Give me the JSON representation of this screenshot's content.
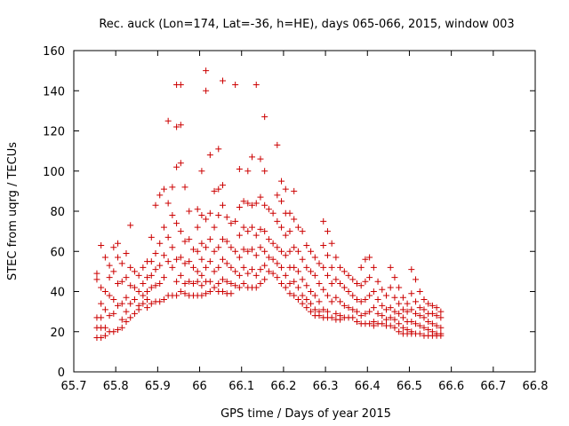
{
  "chart_data": {
    "type": "scatter",
    "title": "Rec. auck (Lon=174, Lat=-36, h=HE), days 065-066, 2015, window 003",
    "xlabel": "GPS time / Days of year 2015",
    "ylabel": "STEC from uqrg / TECUs",
    "xlim": [
      65.7,
      66.8
    ],
    "ylim": [
      0,
      160
    ],
    "xticks": [
      "65.7",
      "65.8",
      "65.9",
      "66",
      "66.1",
      "66.2",
      "66.3",
      "66.4",
      "66.5",
      "66.6",
      "66.7",
      "66.8"
    ],
    "yticks": [
      "0",
      "20",
      "40",
      "60",
      "80",
      "100",
      "120",
      "140",
      "160"
    ],
    "grid": false,
    "legend": "none",
    "marker": "plus",
    "color": "#cc0000",
    "points": [
      [
        65.755,
        49
      ],
      [
        65.755,
        46
      ],
      [
        65.755,
        27
      ],
      [
        65.755,
        22
      ],
      [
        65.755,
        17
      ],
      [
        65.765,
        63
      ],
      [
        65.765,
        42
      ],
      [
        65.765,
        34
      ],
      [
        65.765,
        27
      ],
      [
        65.765,
        22
      ],
      [
        65.765,
        17
      ],
      [
        65.775,
        57
      ],
      [
        65.775,
        40
      ],
      [
        65.775,
        31
      ],
      [
        65.775,
        22
      ],
      [
        65.775,
        18
      ],
      [
        65.785,
        53
      ],
      [
        65.785,
        47
      ],
      [
        65.785,
        38
      ],
      [
        65.785,
        28
      ],
      [
        65.785,
        20
      ],
      [
        65.795,
        62
      ],
      [
        65.795,
        50
      ],
      [
        65.795,
        36
      ],
      [
        65.795,
        29
      ],
      [
        65.795,
        20
      ],
      [
        65.805,
        64
      ],
      [
        65.805,
        57
      ],
      [
        65.805,
        44
      ],
      [
        65.805,
        33
      ],
      [
        65.805,
        21
      ],
      [
        65.815,
        54
      ],
      [
        65.815,
        45
      ],
      [
        65.815,
        34
      ],
      [
        65.815,
        26
      ],
      [
        65.815,
        22
      ],
      [
        65.825,
        59
      ],
      [
        65.825,
        47
      ],
      [
        65.825,
        37
      ],
      [
        65.825,
        30
      ],
      [
        65.825,
        25
      ],
      [
        65.835,
        73
      ],
      [
        65.835,
        52
      ],
      [
        65.835,
        43
      ],
      [
        65.835,
        34
      ],
      [
        65.835,
        27
      ],
      [
        65.845,
        50
      ],
      [
        65.845,
        42
      ],
      [
        65.845,
        36
      ],
      [
        65.845,
        29
      ],
      [
        65.855,
        48
      ],
      [
        65.855,
        40
      ],
      [
        65.855,
        33
      ],
      [
        65.855,
        31
      ],
      [
        65.865,
        52
      ],
      [
        65.865,
        44
      ],
      [
        65.865,
        38
      ],
      [
        65.865,
        34
      ],
      [
        65.875,
        55
      ],
      [
        65.875,
        47
      ],
      [
        65.875,
        40
      ],
      [
        65.875,
        36
      ],
      [
        65.875,
        32
      ],
      [
        65.885,
        67
      ],
      [
        65.885,
        55
      ],
      [
        65.885,
        48
      ],
      [
        65.885,
        42
      ],
      [
        65.885,
        34
      ],
      [
        65.895,
        83
      ],
      [
        65.895,
        59
      ],
      [
        65.895,
        51
      ],
      [
        65.895,
        43
      ],
      [
        65.895,
        35
      ],
      [
        65.905,
        88
      ],
      [
        65.905,
        64
      ],
      [
        65.905,
        53
      ],
      [
        65.905,
        44
      ],
      [
        65.905,
        35
      ],
      [
        65.915,
        91
      ],
      [
        65.915,
        72
      ],
      [
        65.915,
        58
      ],
      [
        65.915,
        47
      ],
      [
        65.915,
        36
      ],
      [
        65.925,
        125
      ],
      [
        65.925,
        84
      ],
      [
        65.925,
        67
      ],
      [
        65.925,
        55
      ],
      [
        65.925,
        38
      ],
      [
        65.935,
        92
      ],
      [
        65.935,
        78
      ],
      [
        65.935,
        62
      ],
      [
        65.935,
        52
      ],
      [
        65.935,
        38
      ],
      [
        65.945,
        143
      ],
      [
        65.945,
        122
      ],
      [
        65.945,
        102
      ],
      [
        65.945,
        74
      ],
      [
        65.945,
        56
      ],
      [
        65.945,
        45
      ],
      [
        65.945,
        38
      ],
      [
        65.955,
        143
      ],
      [
        65.955,
        123
      ],
      [
        65.955,
        104
      ],
      [
        65.955,
        70
      ],
      [
        65.955,
        57
      ],
      [
        65.955,
        48
      ],
      [
        65.955,
        40
      ],
      [
        65.965,
        92
      ],
      [
        65.965,
        65
      ],
      [
        65.965,
        54
      ],
      [
        65.965,
        44
      ],
      [
        65.965,
        39
      ],
      [
        65.975,
        80
      ],
      [
        65.975,
        66
      ],
      [
        65.975,
        55
      ],
      [
        65.975,
        45
      ],
      [
        65.975,
        38
      ],
      [
        65.985,
        61
      ],
      [
        65.985,
        52
      ],
      [
        65.985,
        44
      ],
      [
        65.985,
        38
      ],
      [
        65.995,
        81
      ],
      [
        65.995,
        72
      ],
      [
        65.995,
        60
      ],
      [
        65.995,
        50
      ],
      [
        65.995,
        45
      ],
      [
        65.995,
        38
      ],
      [
        66.005,
        100
      ],
      [
        66.005,
        78
      ],
      [
        66.005,
        64
      ],
      [
        66.005,
        56
      ],
      [
        66.005,
        48
      ],
      [
        66.005,
        43
      ],
      [
        66.005,
        38
      ],
      [
        66.015,
        150
      ],
      [
        66.015,
        140
      ],
      [
        66.015,
        76
      ],
      [
        66.015,
        62
      ],
      [
        66.015,
        52
      ],
      [
        66.015,
        45
      ],
      [
        66.015,
        39
      ],
      [
        66.025,
        108
      ],
      [
        66.025,
        79
      ],
      [
        66.025,
        66
      ],
      [
        66.025,
        55
      ],
      [
        66.025,
        45
      ],
      [
        66.025,
        40
      ],
      [
        66.035,
        90
      ],
      [
        66.035,
        72
      ],
      [
        66.035,
        60
      ],
      [
        66.035,
        50
      ],
      [
        66.035,
        42
      ],
      [
        66.045,
        111
      ],
      [
        66.045,
        91
      ],
      [
        66.045,
        78
      ],
      [
        66.045,
        62
      ],
      [
        66.045,
        52
      ],
      [
        66.045,
        44
      ],
      [
        66.045,
        40
      ],
      [
        66.055,
        145
      ],
      [
        66.055,
        93
      ],
      [
        66.055,
        83
      ],
      [
        66.055,
        66
      ],
      [
        66.055,
        56
      ],
      [
        66.055,
        46
      ],
      [
        66.055,
        40
      ],
      [
        66.065,
        77
      ],
      [
        66.065,
        65
      ],
      [
        66.065,
        54
      ],
      [
        66.065,
        45
      ],
      [
        66.065,
        39
      ],
      [
        66.075,
        74
      ],
      [
        66.075,
        62
      ],
      [
        66.075,
        52
      ],
      [
        66.075,
        44
      ],
      [
        66.075,
        39
      ],
      [
        66.085,
        143
      ],
      [
        66.085,
        75
      ],
      [
        66.085,
        60
      ],
      [
        66.085,
        50
      ],
      [
        66.085,
        43
      ],
      [
        66.095,
        101
      ],
      [
        66.095,
        82
      ],
      [
        66.095,
        68
      ],
      [
        66.095,
        57
      ],
      [
        66.095,
        48
      ],
      [
        66.095,
        42
      ],
      [
        66.105,
        85
      ],
      [
        66.105,
        72
      ],
      [
        66.105,
        61
      ],
      [
        66.105,
        52
      ],
      [
        66.105,
        44
      ],
      [
        66.115,
        100
      ],
      [
        66.115,
        84
      ],
      [
        66.115,
        70
      ],
      [
        66.115,
        60
      ],
      [
        66.115,
        49
      ],
      [
        66.115,
        42
      ],
      [
        66.125,
        107
      ],
      [
        66.125,
        83
      ],
      [
        66.125,
        72
      ],
      [
        66.125,
        61
      ],
      [
        66.125,
        51
      ],
      [
        66.125,
        42
      ],
      [
        66.135,
        143
      ],
      [
        66.135,
        84
      ],
      [
        66.135,
        68
      ],
      [
        66.135,
        58
      ],
      [
        66.135,
        48
      ],
      [
        66.135,
        42
      ],
      [
        66.145,
        106
      ],
      [
        66.145,
        87
      ],
      [
        66.145,
        71
      ],
      [
        66.145,
        62
      ],
      [
        66.145,
        51
      ],
      [
        66.145,
        44
      ],
      [
        66.155,
        127
      ],
      [
        66.155,
        100
      ],
      [
        66.155,
        83
      ],
      [
        66.155,
        70
      ],
      [
        66.155,
        60
      ],
      [
        66.155,
        53
      ],
      [
        66.155,
        46
      ],
      [
        66.165,
        81
      ],
      [
        66.165,
        66
      ],
      [
        66.165,
        57
      ],
      [
        66.165,
        50
      ],
      [
        66.175,
        79
      ],
      [
        66.175,
        64
      ],
      [
        66.175,
        56
      ],
      [
        66.175,
        49
      ],
      [
        66.185,
        113
      ],
      [
        66.185,
        88
      ],
      [
        66.185,
        75
      ],
      [
        66.185,
        62
      ],
      [
        66.185,
        54
      ],
      [
        66.185,
        47
      ],
      [
        66.195,
        95
      ],
      [
        66.195,
        85
      ],
      [
        66.195,
        72
      ],
      [
        66.195,
        60
      ],
      [
        66.195,
        52
      ],
      [
        66.195,
        44
      ],
      [
        66.205,
        91
      ],
      [
        66.205,
        79
      ],
      [
        66.205,
        68
      ],
      [
        66.205,
        58
      ],
      [
        66.205,
        48
      ],
      [
        66.205,
        42
      ],
      [
        66.215,
        79
      ],
      [
        66.215,
        70
      ],
      [
        66.215,
        60
      ],
      [
        66.215,
        52
      ],
      [
        66.215,
        44
      ],
      [
        66.215,
        39
      ],
      [
        66.225,
        90
      ],
      [
        66.225,
        76
      ],
      [
        66.225,
        62
      ],
      [
        66.225,
        52
      ],
      [
        66.225,
        45
      ],
      [
        66.225,
        38
      ],
      [
        66.235,
        72
      ],
      [
        66.235,
        60
      ],
      [
        66.235,
        50
      ],
      [
        66.235,
        42
      ],
      [
        66.235,
        36
      ],
      [
        66.245,
        70
      ],
      [
        66.245,
        56
      ],
      [
        66.245,
        46
      ],
      [
        66.245,
        38
      ],
      [
        66.245,
        34
      ],
      [
        66.255,
        63
      ],
      [
        66.255,
        52
      ],
      [
        66.255,
        43
      ],
      [
        66.255,
        36
      ],
      [
        66.255,
        32
      ],
      [
        66.265,
        60
      ],
      [
        66.265,
        50
      ],
      [
        66.265,
        40
      ],
      [
        66.265,
        34
      ],
      [
        66.265,
        30
      ],
      [
        66.275,
        57
      ],
      [
        66.275,
        48
      ],
      [
        66.275,
        38
      ],
      [
        66.275,
        31
      ],
      [
        66.275,
        28
      ],
      [
        66.285,
        54
      ],
      [
        66.285,
        44
      ],
      [
        66.285,
        35
      ],
      [
        66.285,
        30
      ],
      [
        66.285,
        28
      ],
      [
        66.295,
        75
      ],
      [
        66.295,
        63
      ],
      [
        66.295,
        52
      ],
      [
        66.295,
        41
      ],
      [
        66.295,
        31
      ],
      [
        66.295,
        27
      ],
      [
        66.305,
        70
      ],
      [
        66.305,
        58
      ],
      [
        66.305,
        48
      ],
      [
        66.305,
        38
      ],
      [
        66.305,
        30
      ],
      [
        66.305,
        27
      ],
      [
        66.315,
        64
      ],
      [
        66.315,
        52
      ],
      [
        66.315,
        44
      ],
      [
        66.315,
        35
      ],
      [
        66.315,
        27
      ],
      [
        66.325,
        57
      ],
      [
        66.325,
        46
      ],
      [
        66.325,
        37
      ],
      [
        66.325,
        29
      ],
      [
        66.325,
        26
      ],
      [
        66.335,
        52
      ],
      [
        66.335,
        44
      ],
      [
        66.335,
        35
      ],
      [
        66.335,
        28
      ],
      [
        66.335,
        26
      ],
      [
        66.345,
        50
      ],
      [
        66.345,
        42
      ],
      [
        66.345,
        33
      ],
      [
        66.345,
        27
      ],
      [
        66.355,
        48
      ],
      [
        66.355,
        40
      ],
      [
        66.355,
        32
      ],
      [
        66.355,
        27
      ],
      [
        66.365,
        46
      ],
      [
        66.365,
        38
      ],
      [
        66.365,
        31
      ],
      [
        66.365,
        27
      ],
      [
        66.375,
        44
      ],
      [
        66.375,
        36
      ],
      [
        66.375,
        30
      ],
      [
        66.375,
        25
      ],
      [
        66.385,
        52
      ],
      [
        66.385,
        43
      ],
      [
        66.385,
        35
      ],
      [
        66.385,
        28
      ],
      [
        66.385,
        24
      ],
      [
        66.395,
        56
      ],
      [
        66.395,
        45
      ],
      [
        66.395,
        36
      ],
      [
        66.395,
        29
      ],
      [
        66.395,
        24
      ],
      [
        66.405,
        57
      ],
      [
        66.405,
        47
      ],
      [
        66.405,
        38
      ],
      [
        66.405,
        30
      ],
      [
        66.405,
        24
      ],
      [
        66.415,
        52
      ],
      [
        66.415,
        40
      ],
      [
        66.415,
        32
      ],
      [
        66.415,
        25
      ],
      [
        66.415,
        23
      ],
      [
        66.425,
        45
      ],
      [
        66.425,
        36
      ],
      [
        66.425,
        29
      ],
      [
        66.425,
        24
      ],
      [
        66.435,
        41
      ],
      [
        66.435,
        33
      ],
      [
        66.435,
        28
      ],
      [
        66.435,
        24
      ],
      [
        66.445,
        38
      ],
      [
        66.445,
        31
      ],
      [
        66.445,
        26
      ],
      [
        66.445,
        23
      ],
      [
        66.455,
        52
      ],
      [
        66.455,
        42
      ],
      [
        66.455,
        32
      ],
      [
        66.455,
        27
      ],
      [
        66.455,
        23
      ],
      [
        66.465,
        47
      ],
      [
        66.465,
        37
      ],
      [
        66.465,
        30
      ],
      [
        66.465,
        26
      ],
      [
        66.465,
        22
      ],
      [
        66.475,
        42
      ],
      [
        66.475,
        34
      ],
      [
        66.475,
        29
      ],
      [
        66.475,
        24
      ],
      [
        66.475,
        20
      ],
      [
        66.485,
        37
      ],
      [
        66.485,
        31
      ],
      [
        66.485,
        27
      ],
      [
        66.485,
        22
      ],
      [
        66.485,
        19
      ],
      [
        66.495,
        34
      ],
      [
        66.495,
        30
      ],
      [
        66.495,
        25
      ],
      [
        66.495,
        21
      ],
      [
        66.495,
        19
      ],
      [
        66.505,
        51
      ],
      [
        66.505,
        39
      ],
      [
        66.505,
        31
      ],
      [
        66.505,
        25
      ],
      [
        66.505,
        20
      ],
      [
        66.505,
        19
      ],
      [
        66.515,
        46
      ],
      [
        66.515,
        35
      ],
      [
        66.515,
        29
      ],
      [
        66.515,
        24
      ],
      [
        66.515,
        19
      ],
      [
        66.525,
        40
      ],
      [
        66.525,
        32
      ],
      [
        66.525,
        28
      ],
      [
        66.525,
        23
      ],
      [
        66.525,
        19
      ],
      [
        66.535,
        36
      ],
      [
        66.535,
        31
      ],
      [
        66.535,
        27
      ],
      [
        66.535,
        22
      ],
      [
        66.535,
        18
      ],
      [
        66.545,
        34
      ],
      [
        66.545,
        29
      ],
      [
        66.545,
        25
      ],
      [
        66.545,
        21
      ],
      [
        66.545,
        18
      ],
      [
        66.555,
        33
      ],
      [
        66.555,
        29
      ],
      [
        66.555,
        24
      ],
      [
        66.555,
        20
      ],
      [
        66.555,
        18
      ],
      [
        66.565,
        32
      ],
      [
        66.565,
        28
      ],
      [
        66.565,
        23
      ],
      [
        66.565,
        19
      ],
      [
        66.565,
        18
      ],
      [
        66.575,
        30
      ],
      [
        66.575,
        27
      ],
      [
        66.575,
        22
      ],
      [
        66.575,
        19
      ],
      [
        66.575,
        18
      ]
    ]
  }
}
